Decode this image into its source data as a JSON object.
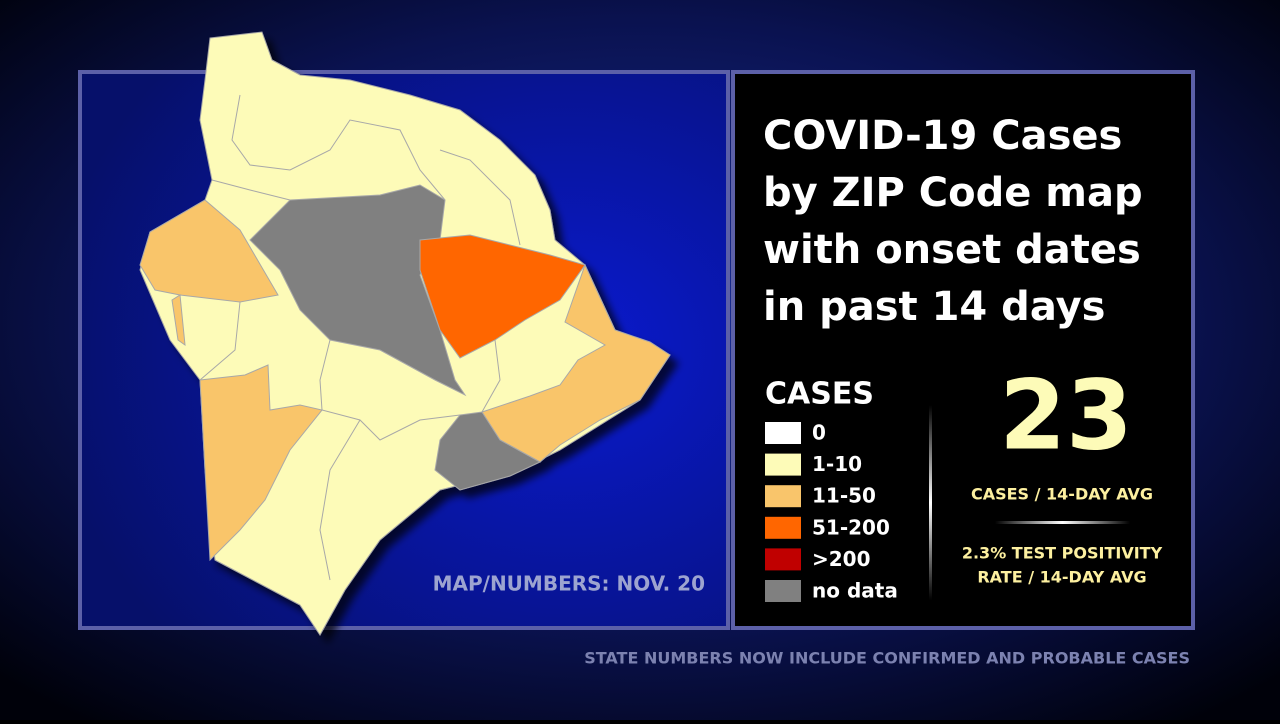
{
  "title_lines": [
    "COVID-19 Cases",
    "by ZIP Code map",
    "with onset dates",
    "in past 14 days"
  ],
  "legend": {
    "title": "CASES",
    "items": [
      {
        "label": "0",
        "color": "#ffffff"
      },
      {
        "label": "1-10",
        "color": "#fdfbb8"
      },
      {
        "label": "11-50",
        "color": "#f9c56b"
      },
      {
        "label": "51-200",
        "color": "#ff6600"
      },
      {
        "label": ">200",
        "color": "#c00000"
      },
      {
        "label": "no data",
        "color": "#808080"
      }
    ]
  },
  "stats": {
    "value": 23,
    "value_caption": "CASES / 14-DAY AVG",
    "positivity_lines": [
      "2.3% TEST POSITIVITY",
      "RATE / 14-DAY AVG"
    ]
  },
  "map_date": "MAP/NUMBERS: NOV. 20",
  "footer": "STATE NUMBERS NOW INCLUDE CONFIRMED AND PROBABLE CASES"
}
